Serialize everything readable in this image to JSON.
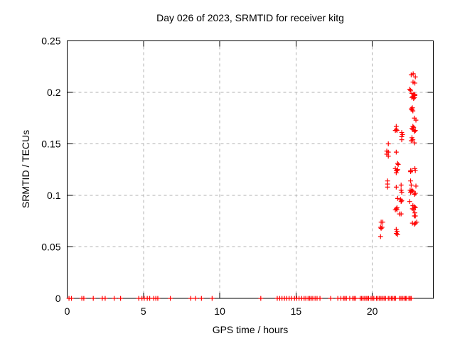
{
  "chart_data": {
    "type": "scatter",
    "title": "Day 026 of 2023, SRMTID for receiver kitg",
    "xlabel": "GPS time / hours",
    "ylabel": "SRMTID / TECUs",
    "xlim": [
      0,
      24
    ],
    "ylim": [
      0,
      0.25
    ],
    "grid": true,
    "legend": false,
    "marker": "plus",
    "marker_color": "#ff0000",
    "axis_color": "#000000",
    "grid_color": "#b0b0b0",
    "background": "#ffffff",
    "xticks": [
      {
        "value": 0,
        "label": "0"
      },
      {
        "value": 5,
        "label": "5"
      },
      {
        "value": 10,
        "label": "10"
      },
      {
        "value": 15,
        "label": "15"
      },
      {
        "value": 20,
        "label": "20"
      }
    ],
    "yticks": [
      {
        "value": 0,
        "label": "0"
      },
      {
        "value": 0.05,
        "label": "0.05"
      },
      {
        "value": 0.1,
        "label": "0.1"
      },
      {
        "value": 0.15,
        "label": "0.15"
      },
      {
        "value": 0.2,
        "label": "0.2"
      },
      {
        "value": 0.25,
        "label": "0.25"
      }
    ],
    "series": [
      {
        "name": "SRMTID",
        "color": "#ff0000",
        "points": [
          [
            0.12,
            0
          ],
          [
            0.28,
            0
          ],
          [
            0.96,
            0
          ],
          [
            1.09,
            0
          ],
          [
            1.71,
            0
          ],
          [
            2.3,
            0
          ],
          [
            2.49,
            0
          ],
          [
            3.08,
            0
          ],
          [
            3.5,
            0
          ],
          [
            4.69,
            0
          ],
          [
            4.9,
            0
          ],
          [
            5.05,
            0
          ],
          [
            5.25,
            0
          ],
          [
            5.41,
            0
          ],
          [
            5.67,
            0
          ],
          [
            5.81,
            0
          ],
          [
            5.94,
            0
          ],
          [
            6.76,
            0
          ],
          [
            8.1,
            0
          ],
          [
            8.41,
            0
          ],
          [
            8.8,
            0
          ],
          [
            9.5,
            0
          ],
          [
            12.69,
            0
          ],
          [
            13.77,
            0
          ],
          [
            13.93,
            0
          ],
          [
            14.08,
            0
          ],
          [
            14.24,
            0
          ],
          [
            14.39,
            0
          ],
          [
            14.55,
            0
          ],
          [
            14.7,
            0
          ],
          [
            14.9,
            0
          ],
          [
            15.04,
            0
          ],
          [
            15.2,
            0
          ],
          [
            15.37,
            0
          ],
          [
            15.53,
            0
          ],
          [
            15.64,
            0
          ],
          [
            15.79,
            0
          ],
          [
            15.9,
            0
          ],
          [
            16.0,
            0
          ],
          [
            16.1,
            0
          ],
          [
            16.25,
            0
          ],
          [
            16.38,
            0
          ],
          [
            16.57,
            0
          ],
          [
            17.27,
            0
          ],
          [
            17.74,
            0
          ],
          [
            17.94,
            0
          ],
          [
            18.11,
            0
          ],
          [
            18.2,
            0
          ],
          [
            18.3,
            0
          ],
          [
            18.52,
            0
          ],
          [
            18.72,
            0
          ],
          [
            18.81,
            0
          ],
          [
            18.9,
            0
          ],
          [
            19.21,
            0
          ],
          [
            19.3,
            0
          ],
          [
            19.4,
            0
          ],
          [
            19.5,
            0
          ],
          [
            19.6,
            0
          ],
          [
            19.7,
            0
          ],
          [
            19.76,
            0
          ],
          [
            19.92,
            0
          ],
          [
            20.0,
            0
          ],
          [
            20.1,
            0
          ],
          [
            20.27,
            0
          ],
          [
            20.37,
            0
          ],
          [
            20.47,
            0
          ],
          [
            20.57,
            0
          ],
          [
            20.67,
            0
          ],
          [
            20.77,
            0
          ],
          [
            20.87,
            0
          ],
          [
            21.05,
            0
          ],
          [
            21.15,
            0
          ],
          [
            21.25,
            0
          ],
          [
            21.35,
            0
          ],
          [
            21.45,
            0
          ],
          [
            21.52,
            0
          ],
          [
            21.78,
            0
          ],
          [
            21.88,
            0
          ],
          [
            21.98,
            0
          ],
          [
            22.08,
            0
          ],
          [
            22.18,
            0
          ],
          [
            22.25,
            0
          ],
          [
            22.4,
            0
          ],
          [
            22.48,
            0
          ],
          [
            22.55,
            0
          ],
          [
            20.58,
            0.074
          ],
          [
            20.69,
            0.074
          ],
          [
            20.54,
            0.069
          ],
          [
            20.58,
            0.068
          ],
          [
            20.64,
            0.069
          ],
          [
            20.54,
            0.06
          ],
          [
            20.95,
            0.143
          ],
          [
            21.05,
            0.142
          ],
          [
            20.95,
            0.14
          ],
          [
            21.05,
            0.138
          ],
          [
            21.0,
            0.114
          ],
          [
            21.0,
            0.111
          ],
          [
            21.0,
            0.108
          ],
          [
            21.05,
            0.15
          ],
          [
            21.57,
            0.167
          ],
          [
            21.57,
            0.164
          ],
          [
            21.51,
            0.163
          ],
          [
            21.62,
            0.163
          ],
          [
            21.57,
            0.142
          ],
          [
            21.66,
            0.131
          ],
          [
            21.7,
            0.13
          ],
          [
            21.51,
            0.126
          ],
          [
            21.57,
            0.124
          ],
          [
            21.62,
            0.124
          ],
          [
            21.57,
            0.122
          ],
          [
            21.66,
            0.125
          ],
          [
            21.57,
            0.108
          ],
          [
            21.66,
            0.097
          ],
          [
            21.57,
            0.087
          ],
          [
            21.62,
            0.086
          ],
          [
            21.51,
            0.086
          ],
          [
            21.62,
            0.088
          ],
          [
            21.57,
            0.067
          ],
          [
            21.62,
            0.065
          ],
          [
            21.57,
            0.063
          ],
          [
            21.66,
            0.062
          ],
          [
            21.89,
            0.11
          ],
          [
            21.85,
            0.096
          ],
          [
            21.93,
            0.095
          ],
          [
            21.89,
            0.094
          ],
          [
            21.89,
            0.105
          ],
          [
            21.93,
            0.103
          ],
          [
            21.93,
            0.161
          ],
          [
            21.98,
            0.159
          ],
          [
            21.93,
            0.157
          ],
          [
            21.93,
            0.154
          ],
          [
            21.89,
            0.082
          ],
          [
            21.78,
            0.082
          ],
          [
            22.55,
            0.217
          ],
          [
            22.68,
            0.218
          ],
          [
            22.82,
            0.215
          ],
          [
            22.67,
            0.21
          ],
          [
            22.79,
            0.209
          ],
          [
            22.45,
            0.203
          ],
          [
            22.51,
            0.202
          ],
          [
            22.6,
            0.199
          ],
          [
            22.71,
            0.198
          ],
          [
            22.79,
            0.198
          ],
          [
            22.66,
            0.196
          ],
          [
            22.76,
            0.195
          ],
          [
            22.6,
            0.195
          ],
          [
            22.71,
            0.194
          ],
          [
            22.79,
            0.197
          ],
          [
            22.63,
            0.185
          ],
          [
            22.55,
            0.184
          ],
          [
            22.6,
            0.183
          ],
          [
            22.66,
            0.182
          ],
          [
            22.76,
            0.175
          ],
          [
            22.86,
            0.173
          ],
          [
            22.66,
            0.167
          ],
          [
            22.71,
            0.166
          ],
          [
            22.6,
            0.165
          ],
          [
            22.66,
            0.164
          ],
          [
            22.76,
            0.162
          ],
          [
            22.82,
            0.163
          ],
          [
            22.6,
            0.156
          ],
          [
            22.66,
            0.154
          ],
          [
            22.55,
            0.153
          ],
          [
            22.76,
            0.151
          ],
          [
            22.51,
            0.124
          ],
          [
            22.6,
            0.124
          ],
          [
            22.51,
            0.123
          ],
          [
            22.79,
            0.126
          ],
          [
            22.82,
            0.124
          ],
          [
            22.51,
            0.114
          ],
          [
            22.55,
            0.11
          ],
          [
            22.86,
            0.109
          ],
          [
            22.48,
            0.105
          ],
          [
            22.55,
            0.104
          ],
          [
            22.51,
            0.103
          ],
          [
            22.6,
            0.105
          ],
          [
            22.66,
            0.104
          ],
          [
            22.76,
            0.101
          ],
          [
            22.82,
            0.102
          ],
          [
            22.45,
            0.094
          ],
          [
            22.66,
            0.09
          ],
          [
            22.76,
            0.089
          ],
          [
            22.82,
            0.088
          ],
          [
            22.63,
            0.087
          ],
          [
            22.71,
            0.086
          ],
          [
            22.79,
            0.083
          ],
          [
            22.82,
            0.08
          ],
          [
            22.76,
            0.08
          ],
          [
            22.63,
            0.073
          ],
          [
            22.76,
            0.072
          ],
          [
            22.82,
            0.073
          ],
          [
            22.91,
            0.074
          ]
        ]
      }
    ]
  }
}
